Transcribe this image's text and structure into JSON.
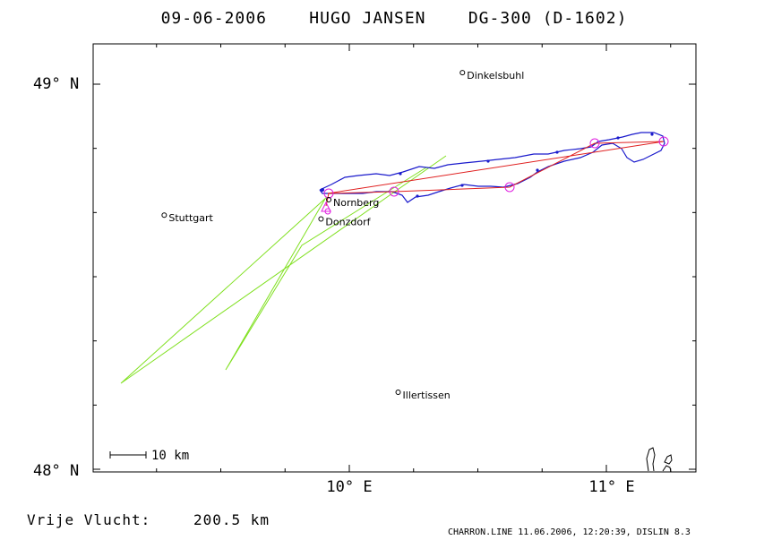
{
  "title": "09-06-2006    HUGO JANSEN    DG-300 (D-1602)",
  "axes": {
    "lat_labels": [
      {
        "text": "49° N",
        "lat": 49.0
      },
      {
        "text": "48° N",
        "lat": 48.0
      }
    ],
    "lon_labels": [
      {
        "text": "10° E",
        "lon": 10.0
      },
      {
        "text": "11° E",
        "lon": 11.0
      }
    ]
  },
  "towns": [
    {
      "name": "Dinkelsbuhl",
      "lon": 10.44,
      "lat": 49.03
    },
    {
      "name": "Stuttgart",
      "lon": 9.28,
      "lat": 48.66
    },
    {
      "name": "Nornberg",
      "lon": 9.92,
      "lat": 48.7
    },
    {
      "name": "Donzdorf",
      "lon": 9.89,
      "lat": 48.65
    },
    {
      "name": "Illertissen",
      "lon": 10.19,
      "lat": 48.2
    }
  ],
  "scale_label": "10 km",
  "distance": {
    "label": "Vrije Vlucht:",
    "value": "200.5 km"
  },
  "credit": "CHARRON.LINE 11.06.2006, 12:20:39, DISLIN 8.3",
  "colors": {
    "track": "#1a1acc",
    "task": "#e02020",
    "turnpoints": "#e020e0",
    "green": "#80e020",
    "frame": "#000000"
  }
}
